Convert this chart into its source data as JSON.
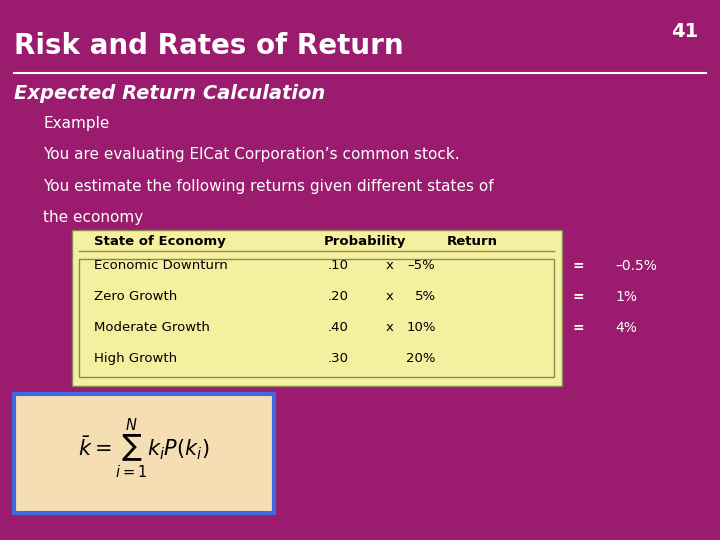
{
  "bg_color": "#9B1B6E",
  "title": "Risk and Rates of Return",
  "title_color": "#FFFFFF",
  "slide_number": "41",
  "subtitle": "Expected Return Calculation",
  "subtitle_color": "#FFFFFF",
  "body_lines": [
    "Example",
    "You are evaluating ElCat Corporation’s common stock.",
    "You estimate the following returns given different states of",
    "the economy"
  ],
  "body_color": "#FFFFFF",
  "table_bg": "#F5F0A0",
  "table_header": [
    "State of Economy",
    "Probability",
    "Return"
  ],
  "table_rows": [
    [
      "Economic Downturn",
      ".10",
      "x",
      "–5%"
    ],
    [
      "Zero Growth",
      ".20",
      "x",
      "5%"
    ],
    [
      "Moderate Growth",
      ".40",
      "x",
      "10%"
    ],
    [
      "High Growth",
      ".30",
      "",
      "20%"
    ]
  ],
  "results": [
    "–0.5%",
    "1%",
    "4%"
  ],
  "formula_bg": "#F5DEB3",
  "formula_border": "#4169E1"
}
